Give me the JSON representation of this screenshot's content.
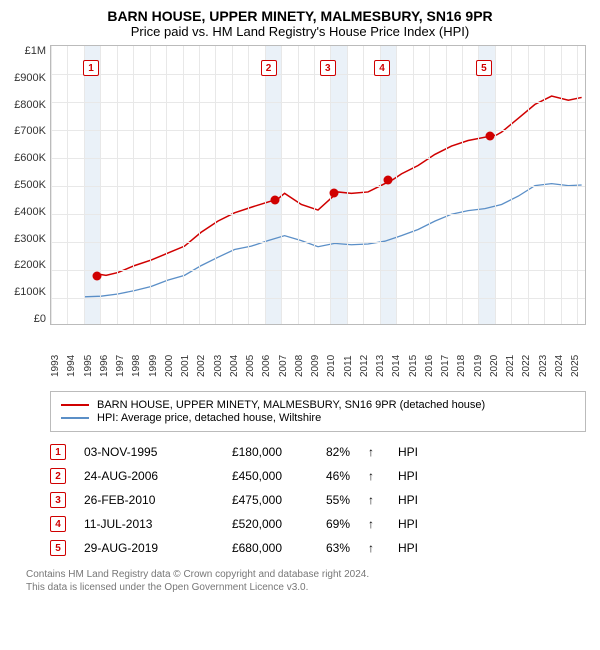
{
  "title": "BARN HOUSE, UPPER MINETY, MALMESBURY, SN16 9PR",
  "subtitle": "Price paid vs. HM Land Registry's House Price Index (HPI)",
  "chart": {
    "type": "line",
    "xmin": 1993,
    "xmax": 2025,
    "ymin": 0,
    "ymax": 1000000,
    "ylabels": [
      "£1M",
      "£900K",
      "£800K",
      "£700K",
      "£600K",
      "£500K",
      "£400K",
      "£300K",
      "£200K",
      "£100K",
      "£0"
    ],
    "xticks": [
      1993,
      1994,
      1995,
      1996,
      1997,
      1998,
      1999,
      2000,
      2001,
      2002,
      2003,
      2004,
      2005,
      2006,
      2007,
      2008,
      2009,
      2010,
      2011,
      2012,
      2013,
      2014,
      2015,
      2016,
      2017,
      2018,
      2019,
      2020,
      2021,
      2022,
      2023,
      2024,
      2025
    ],
    "grid_color": "#e8e8e8",
    "background_color": "#ffffff",
    "shade_color": "#eaf1f8",
    "shade_years": [
      [
        1995,
        1996
      ],
      [
        2006,
        2007
      ],
      [
        2010,
        2011
      ],
      [
        2013,
        2014
      ],
      [
        2019,
        2020
      ]
    ],
    "series": [
      {
        "name": "redline",
        "color": "#d00000",
        "width": 1.5,
        "points": [
          [
            1995.8,
            180000
          ],
          [
            1996.3,
            175000
          ],
          [
            1997,
            185000
          ],
          [
            1998,
            210000
          ],
          [
            1999,
            230000
          ],
          [
            2000,
            255000
          ],
          [
            2001,
            280000
          ],
          [
            2002,
            330000
          ],
          [
            2003,
            370000
          ],
          [
            2004,
            400000
          ],
          [
            2005,
            420000
          ],
          [
            2006.6,
            450000
          ],
          [
            2007,
            470000
          ],
          [
            2008,
            430000
          ],
          [
            2009,
            410000
          ],
          [
            2010.2,
            475000
          ],
          [
            2011,
            470000
          ],
          [
            2012,
            475000
          ],
          [
            2013.5,
            520000
          ],
          [
            2014,
            540000
          ],
          [
            2015,
            570000
          ],
          [
            2016,
            610000
          ],
          [
            2017,
            640000
          ],
          [
            2018,
            660000
          ],
          [
            2019.7,
            680000
          ],
          [
            2020,
            690000
          ],
          [
            2021,
            740000
          ],
          [
            2022,
            790000
          ],
          [
            2023,
            820000
          ],
          [
            2024,
            805000
          ],
          [
            2024.8,
            815000
          ]
        ]
      },
      {
        "name": "blueline",
        "color": "#5b8fc7",
        "width": 1.3,
        "points": [
          [
            1995,
            98000
          ],
          [
            1996,
            100000
          ],
          [
            1997,
            108000
          ],
          [
            1998,
            120000
          ],
          [
            1999,
            135000
          ],
          [
            2000,
            158000
          ],
          [
            2001,
            175000
          ],
          [
            2002,
            210000
          ],
          [
            2003,
            240000
          ],
          [
            2004,
            268000
          ],
          [
            2005,
            280000
          ],
          [
            2006,
            300000
          ],
          [
            2007,
            318000
          ],
          [
            2008,
            300000
          ],
          [
            2009,
            278000
          ],
          [
            2010,
            290000
          ],
          [
            2011,
            285000
          ],
          [
            2012,
            288000
          ],
          [
            2013,
            298000
          ],
          [
            2014,
            318000
          ],
          [
            2015,
            340000
          ],
          [
            2016,
            370000
          ],
          [
            2017,
            395000
          ],
          [
            2018,
            408000
          ],
          [
            2019,
            415000
          ],
          [
            2020,
            430000
          ],
          [
            2021,
            460000
          ],
          [
            2022,
            498000
          ],
          [
            2023,
            505000
          ],
          [
            2024,
            498000
          ],
          [
            2024.8,
            500000
          ]
        ]
      }
    ],
    "markers": [
      {
        "n": "1",
        "year": 1995.8,
        "price": 180000,
        "box_y": 0.05
      },
      {
        "n": "2",
        "year": 2006.6,
        "price": 450000,
        "box_y": 0.05
      },
      {
        "n": "3",
        "year": 2010.2,
        "price": 475000,
        "box_y": 0.05
      },
      {
        "n": "4",
        "year": 2013.5,
        "price": 520000,
        "box_y": 0.05
      },
      {
        "n": "5",
        "year": 2019.7,
        "price": 680000,
        "box_y": 0.05
      }
    ]
  },
  "legend": {
    "items": [
      {
        "color": "#d00000",
        "label": "BARN HOUSE, UPPER MINETY, MALMESBURY, SN16 9PR (detached house)"
      },
      {
        "color": "#5b8fc7",
        "label": "HPI: Average price, detached house, Wiltshire"
      }
    ]
  },
  "transactions": [
    {
      "n": "1",
      "date": "03-NOV-1995",
      "price": "£180,000",
      "pct": "82%",
      "arrow": "↑",
      "hpi": "HPI"
    },
    {
      "n": "2",
      "date": "24-AUG-2006",
      "price": "£450,000",
      "pct": "46%",
      "arrow": "↑",
      "hpi": "HPI"
    },
    {
      "n": "3",
      "date": "26-FEB-2010",
      "price": "£475,000",
      "pct": "55%",
      "arrow": "↑",
      "hpi": "HPI"
    },
    {
      "n": "4",
      "date": "11-JUL-2013",
      "price": "£520,000",
      "pct": "69%",
      "arrow": "↑",
      "hpi": "HPI"
    },
    {
      "n": "5",
      "date": "29-AUG-2019",
      "price": "£680,000",
      "pct": "63%",
      "arrow": "↑",
      "hpi": "HPI"
    }
  ],
  "footer1": "Contains HM Land Registry data © Crown copyright and database right 2024.",
  "footer2": "This data is licensed under the Open Government Licence v3.0."
}
